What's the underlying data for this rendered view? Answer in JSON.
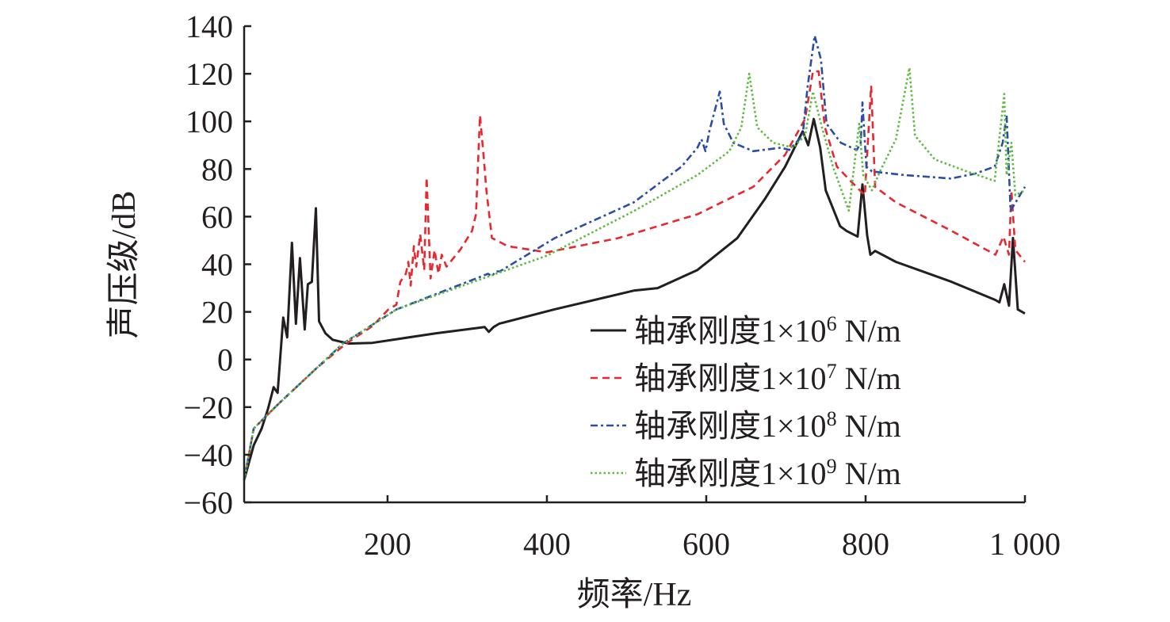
{
  "chart_data": {
    "type": "line",
    "title": "",
    "xlabel": "频率/Hz",
    "ylabel": "声压级/dB",
    "xlim": [
      20,
      1000
    ],
    "ylim": [
      -60,
      140
    ],
    "xticks": [
      200,
      400,
      600,
      800,
      1000
    ],
    "xtick_labels": [
      "200",
      "400",
      "600",
      "800",
      "1 000"
    ],
    "yticks": [
      -60,
      -40,
      -20,
      0,
      20,
      40,
      60,
      80,
      100,
      120,
      140
    ],
    "ytick_labels": [
      "−60",
      "−40",
      "−20",
      "0",
      "20",
      "40",
      "60",
      "80",
      "100",
      "120",
      "140"
    ],
    "grid": false,
    "legend_position": "bottom-right",
    "series": [
      {
        "name": "轴承刚度1×10^6 N/m",
        "label_prefix": "轴承刚度1×10",
        "label_exp": "6",
        "label_suffix": " N/m",
        "color": "#231f20",
        "dash": "solid",
        "x": [
          20,
          32,
          42,
          50,
          57,
          62,
          69,
          74,
          80,
          85,
          90,
          96,
          100,
          105,
          110,
          114,
          122,
          131,
          151,
          181,
          261,
          322,
          327,
          333,
          340,
          409,
          510,
          539,
          589,
          639,
          674,
          699,
          721,
          728,
          735,
          743,
          750,
          768,
          776,
          790,
          796,
          802,
          806,
          812,
          838,
          908,
          963,
          968,
          974,
          980,
          985,
          991,
          1000
        ],
        "y": [
          -50.6,
          -36,
          -29,
          -20.6,
          -11.6,
          -14,
          17.6,
          9.3,
          49,
          15,
          42.6,
          12.6,
          31.6,
          32.6,
          63.5,
          16,
          11,
          8.3,
          6.7,
          7,
          11,
          13.6,
          11.6,
          13.6,
          15,
          21,
          29,
          30,
          37.6,
          51,
          67.6,
          81,
          95.8,
          90,
          101,
          89,
          71,
          56,
          54,
          51.6,
          73.5,
          52,
          44,
          45.6,
          41,
          32.6,
          25,
          24,
          31.6,
          22.6,
          51,
          21,
          19.3
        ]
      },
      {
        "name": "轴承刚度1×10^7 N/m",
        "label_prefix": "轴承刚度1×10",
        "label_exp": "7",
        "label_suffix": " N/m",
        "color": "#e8272f",
        "dash": "dashed",
        "x": [
          20,
          32,
          62,
          112,
          148,
          181,
          201,
          211,
          216,
          223,
          226,
          229,
          233,
          236,
          241,
          246,
          249,
          254,
          259,
          264,
          268,
          274,
          291,
          306,
          311,
          316,
          321,
          324,
          331,
          351,
          400,
          490,
          589,
          659,
          699,
          724,
          734,
          741,
          749,
          764,
          784,
          799,
          807,
          812,
          838,
          908,
          963,
          973,
          980,
          983,
          988,
          1000
        ],
        "y": [
          -50.6,
          -29,
          -19,
          -3.3,
          6.7,
          14,
          21,
          23,
          32.6,
          36,
          41,
          31,
          47.6,
          39,
          52.6,
          37.6,
          76.5,
          34,
          46,
          36,
          44,
          39,
          46,
          54,
          61,
          102.5,
          84,
          71,
          51,
          47.6,
          45,
          51,
          61,
          72.5,
          86,
          101,
          121,
          121,
          97.5,
          81,
          74,
          69,
          115,
          72.5,
          66,
          54,
          44,
          51.6,
          44,
          71,
          46,
          41
        ]
      },
      {
        "name": "轴承刚度1×10^8 N/m",
        "label_prefix": "轴承刚度1×10",
        "label_exp": "8",
        "label_suffix": " N/m",
        "color": "#2b4ea2",
        "dash": "dash-dot",
        "x": [
          20,
          32,
          62,
          112,
          144,
          211,
          311,
          326,
          331,
          336,
          341,
          410,
          509,
          569,
          589,
          594,
          599,
          604,
          617,
          622,
          634,
          659,
          694,
          704,
          721,
          727,
          736,
          744,
          751,
          769,
          789,
          794,
          796,
          801,
          808,
          847,
          907,
          937,
          962,
          972,
          977,
          982,
          1000
        ],
        "y": [
          -50.6,
          -29,
          -19,
          -3.3,
          6.7,
          21,
          34,
          36,
          35,
          37,
          37,
          51,
          66,
          81,
          89,
          92.5,
          87.5,
          96,
          112.5,
          99,
          91,
          87.5,
          89,
          88,
          94,
          114,
          136,
          126,
          99,
          91,
          88,
          91,
          108,
          81,
          79,
          77.5,
          76,
          78,
          81,
          91,
          102.5,
          62.5,
          72.5
        ]
      },
      {
        "name": "轴承刚度1×10^9 N/m",
        "label_prefix": "轴承刚度1×10",
        "label_exp": "9",
        "label_suffix": " N/m",
        "color": "#5dbb3f",
        "dash": "dotted",
        "x": [
          20,
          32,
          62,
          112,
          144,
          211,
          311,
          400,
          510,
          589,
          629,
          644,
          654,
          664,
          684,
          709,
          724,
          734,
          744,
          759,
          779,
          792,
          797,
          808,
          818,
          838,
          855,
          862,
          887,
          927,
          962,
          974,
          977,
          983,
          988,
          1000
        ],
        "y": [
          -50.6,
          -29,
          -19,
          -3.3,
          6.7,
          21,
          33,
          43.6,
          62.5,
          77.5,
          87.5,
          97.5,
          120,
          97.5,
          91,
          89,
          94,
          112.5,
          99,
          81,
          62.5,
          99,
          77.5,
          71,
          79,
          92.5,
          122.5,
          94,
          84,
          79,
          75,
          111.5,
          77.5,
          91,
          69,
          71
        ]
      }
    ]
  }
}
